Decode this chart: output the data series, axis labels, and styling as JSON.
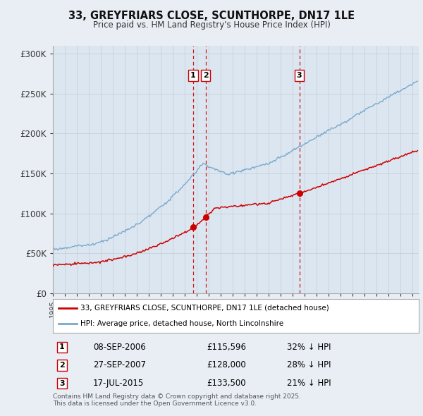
{
  "title": "33, GREYFRIARS CLOSE, SCUNTHORPE, DN17 1LE",
  "subtitle": "Price paid vs. HM Land Registry's House Price Index (HPI)",
  "ylabel_ticks": [
    "£0",
    "£50K",
    "£100K",
    "£150K",
    "£200K",
    "£250K",
    "£300K"
  ],
  "ytick_values": [
    0,
    50000,
    100000,
    150000,
    200000,
    250000,
    300000
  ],
  "ylim": [
    0,
    310000
  ],
  "xlim_start": 1995.0,
  "xlim_end": 2025.5,
  "red_line_color": "#cc0000",
  "blue_line_color": "#7aa8cc",
  "vline_color": "#cc0000",
  "transactions": [
    {
      "label": "1",
      "date_str": "08-SEP-2006",
      "date_num": 2006.69,
      "price": 115596,
      "price_str": "£115,596",
      "pct": "32% ↓ HPI"
    },
    {
      "label": "2",
      "date_str": "27-SEP-2007",
      "date_num": 2007.74,
      "price": 128000,
      "price_str": "£128,000",
      "pct": "28% ↓ HPI"
    },
    {
      "label": "3",
      "date_str": "17-JUL-2015",
      "date_num": 2015.54,
      "price": 133500,
      "price_str": "£133,500",
      "pct": "21% ↓ HPI"
    }
  ],
  "legend_red_label": "33, GREYFRIARS CLOSE, SCUNTHORPE, DN17 1LE (detached house)",
  "legend_blue_label": "HPI: Average price, detached house, North Lincolnshire",
  "footnote": "Contains HM Land Registry data © Crown copyright and database right 2025.\nThis data is licensed under the Open Government Licence v3.0.",
  "background_color": "#e8eef4",
  "plot_bg_color": "#dce6f0",
  "grid_color": "#c0ccd8"
}
